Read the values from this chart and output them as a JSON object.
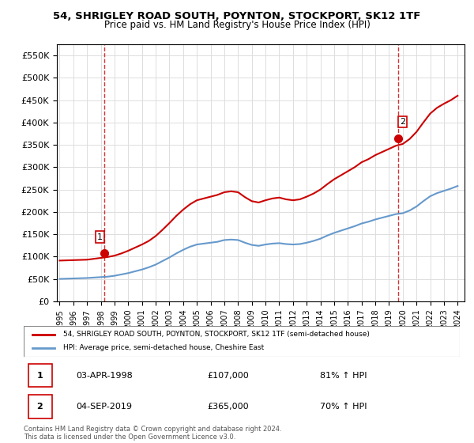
{
  "title_line1": "54, SHRIGLEY ROAD SOUTH, POYNTON, STOCKPORT, SK12 1TF",
  "title_line2": "Price paid vs. HM Land Registry's House Price Index (HPI)",
  "legend_label1": "54, SHRIGLEY ROAD SOUTH, POYNTON, STOCKPORT, SK12 1TF (semi-detached house)",
  "legend_label2": "HPI: Average price, semi-detached house, Cheshire East",
  "footer": "Contains HM Land Registry data © Crown copyright and database right 2024.\nThis data is licensed under the Open Government Licence v3.0.",
  "sale1_label": "1",
  "sale1_date": "03-APR-1998",
  "sale1_price": "£107,000",
  "sale1_hpi": "81% ↑ HPI",
  "sale2_label": "2",
  "sale2_date": "04-SEP-2019",
  "sale2_price": "£365,000",
  "sale2_hpi": "70% ↑ HPI",
  "red_color": "#cc0000",
  "blue_color": "#6699cc",
  "marker_color": "#cc0000",
  "dashed_color": "#cc0000",
  "ylim_max": 575000,
  "ylim_min": 0,
  "yticks": [
    0,
    50000,
    100000,
    150000,
    200000,
    250000,
    300000,
    350000,
    400000,
    450000,
    500000,
    550000
  ],
  "sale1_year": 1998.25,
  "sale1_value": 107000,
  "sale2_year": 2019.67,
  "sale2_value": 365000,
  "hpi_years": [
    1995.0,
    1995.5,
    1996.0,
    1996.5,
    1997.0,
    1997.5,
    1998.0,
    1998.5,
    1999.0,
    1999.5,
    2000.0,
    2000.5,
    2001.0,
    2001.5,
    2002.0,
    2002.5,
    2003.0,
    2003.5,
    2004.0,
    2004.5,
    2005.0,
    2005.5,
    2006.0,
    2006.5,
    2007.0,
    2007.5,
    2008.0,
    2008.5,
    2009.0,
    2009.5,
    2010.0,
    2010.5,
    2011.0,
    2011.5,
    2012.0,
    2012.5,
    2013.0,
    2013.5,
    2014.0,
    2014.5,
    2015.0,
    2015.5,
    2016.0,
    2016.5,
    2017.0,
    2017.5,
    2018.0,
    2018.5,
    2019.0,
    2019.5,
    2020.0,
    2020.5,
    2021.0,
    2021.5,
    2022.0,
    2022.5,
    2023.0,
    2023.5,
    2024.0
  ],
  "hpi_values": [
    50000,
    50500,
    51000,
    51500,
    52000,
    53000,
    54000,
    55000,
    57000,
    60000,
    63000,
    67000,
    71000,
    76000,
    82000,
    90000,
    98000,
    107000,
    115000,
    122000,
    127000,
    129000,
    131000,
    133000,
    137000,
    138000,
    137000,
    131000,
    126000,
    124000,
    127000,
    129000,
    130000,
    128000,
    127000,
    128000,
    131000,
    135000,
    140000,
    147000,
    153000,
    158000,
    163000,
    168000,
    174000,
    178000,
    183000,
    187000,
    191000,
    195000,
    197000,
    203000,
    212000,
    224000,
    235000,
    242000,
    247000,
    252000,
    258000
  ],
  "red_years": [
    1995.0,
    1995.5,
    1996.0,
    1996.5,
    1997.0,
    1997.5,
    1998.0,
    1998.5,
    1999.0,
    1999.5,
    2000.0,
    2000.5,
    2001.0,
    2001.5,
    2002.0,
    2002.5,
    2003.0,
    2003.5,
    2004.0,
    2004.5,
    2005.0,
    2005.5,
    2006.0,
    2006.5,
    2007.0,
    2007.5,
    2008.0,
    2008.5,
    2009.0,
    2009.5,
    2010.0,
    2010.5,
    2011.0,
    2011.5,
    2012.0,
    2012.5,
    2013.0,
    2013.5,
    2014.0,
    2014.5,
    2015.0,
    2015.5,
    2016.0,
    2016.5,
    2017.0,
    2017.5,
    2018.0,
    2018.5,
    2019.0,
    2019.5,
    2020.0,
    2020.5,
    2021.0,
    2021.5,
    2022.0,
    2022.5,
    2023.0,
    2023.5,
    2024.0
  ],
  "red_values": [
    91000,
    91500,
    92000,
    92500,
    93000,
    95000,
    97000,
    99000,
    102000,
    107000,
    113000,
    120000,
    127000,
    135000,
    146000,
    160000,
    175000,
    191000,
    205000,
    217000,
    226000,
    230000,
    234000,
    238000,
    244000,
    246000,
    244000,
    233000,
    224000,
    221000,
    226000,
    230000,
    232000,
    228000,
    226000,
    228000,
    234000,
    241000,
    250000,
    262000,
    273000,
    282000,
    291000,
    300000,
    311000,
    318000,
    327000,
    334000,
    341000,
    348000,
    352000,
    363000,
    379000,
    400000,
    420000,
    433000,
    442000,
    450000,
    460000
  ]
}
